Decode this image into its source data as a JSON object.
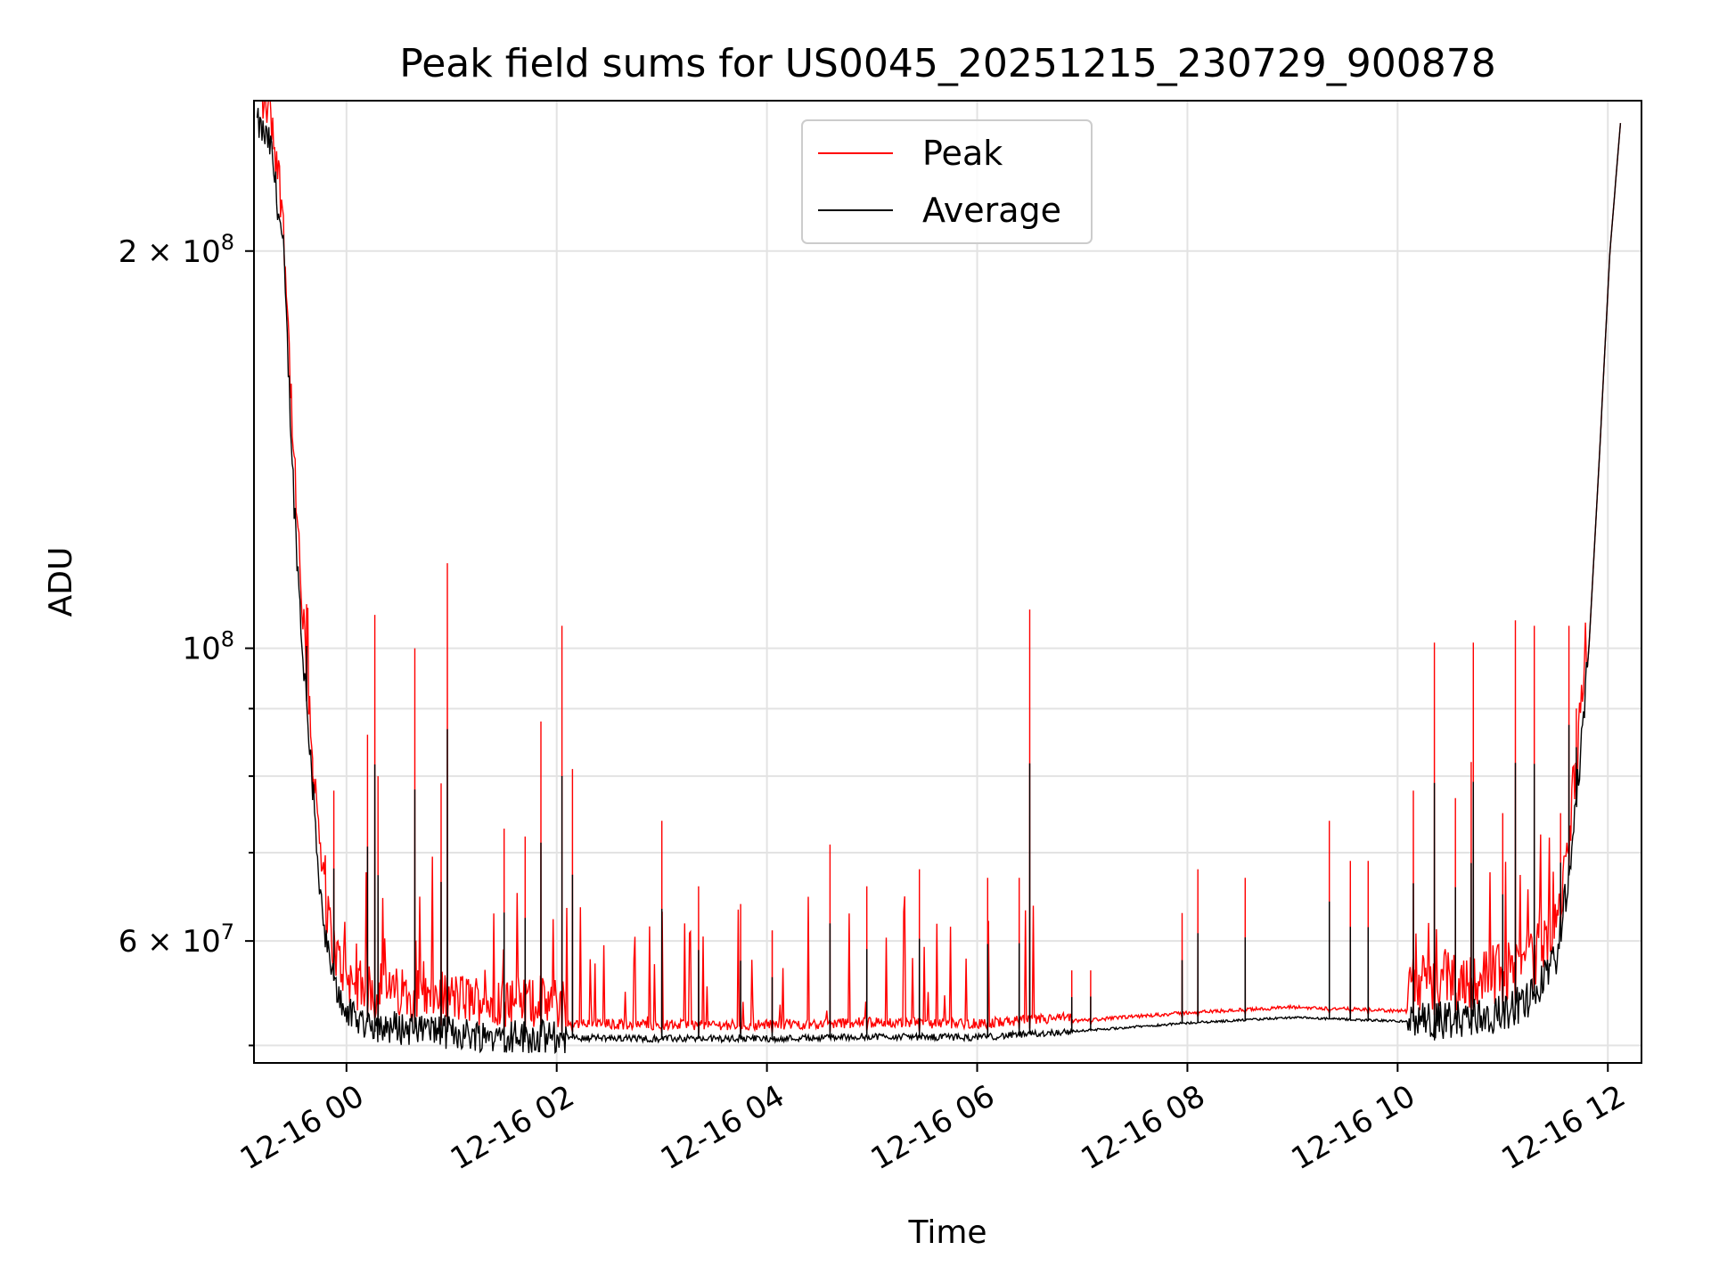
{
  "chart_data": {
    "type": "line",
    "title": "Peak field sums for US0045_20251215_230729_900878",
    "xlabel": "Time",
    "ylabel": "ADU",
    "yscale": "log",
    "xlim": [
      -0.88,
      12.32
    ],
    "ylim": [
      48500000,
      260000000
    ],
    "grid": true,
    "legend_position": "top-center",
    "x_ticks": [
      {
        "value": 0,
        "label": "12-16 00"
      },
      {
        "value": 2,
        "label": "12-16 02"
      },
      {
        "value": 4,
        "label": "12-16 04"
      },
      {
        "value": 6,
        "label": "12-16 06"
      },
      {
        "value": 8,
        "label": "12-16 08"
      },
      {
        "value": 10,
        "label": "12-16 10"
      },
      {
        "value": 12,
        "label": "12-16 12"
      }
    ],
    "y_major_ticks": [
      {
        "value": 200000000,
        "label": "2 × 10⁸",
        "mantissa": "2 × 10",
        "exp": "8"
      },
      {
        "value": 100000000,
        "label": "10⁸",
        "mantissa": "10",
        "exp": "8"
      },
      {
        "value": 60000000,
        "label": "6 × 10⁷",
        "mantissa": "6 × 10",
        "exp": "7"
      }
    ],
    "y_minor_ticks": [
      50000000,
      70000000,
      80000000,
      90000000
    ],
    "series": [
      {
        "name": "Peak",
        "color": "#ff0000"
      },
      {
        "name": "Average",
        "color": "#000000"
      }
    ],
    "baseline_avg": [
      [
        -0.85,
        250000000
      ],
      [
        -0.72,
        240000000
      ],
      [
        -0.6,
        200000000
      ],
      [
        -0.5,
        130000000
      ],
      [
        -0.42,
        100000000
      ],
      [
        -0.35,
        85000000
      ],
      [
        -0.28,
        70000000
      ],
      [
        -0.2,
        60000000
      ],
      [
        -0.1,
        55000000
      ],
      [
        0.05,
        52500000
      ],
      [
        0.3,
        51800000
      ],
      [
        0.7,
        51400000
      ],
      [
        1.2,
        51000000
      ],
      [
        2.0,
        50700000
      ],
      [
        3.0,
        50600000
      ],
      [
        4.0,
        50600000
      ],
      [
        5.0,
        50800000
      ],
      [
        6.0,
        50700000
      ],
      [
        7.0,
        51300000
      ],
      [
        8.0,
        52000000
      ],
      [
        9.0,
        52500000
      ],
      [
        9.6,
        52300000
      ],
      [
        10.2,
        52100000
      ],
      [
        10.6,
        52400000
      ],
      [
        11.0,
        53000000
      ],
      [
        11.3,
        54500000
      ],
      [
        11.5,
        58000000
      ],
      [
        11.62,
        66000000
      ],
      [
        11.72,
        80000000
      ],
      [
        11.82,
        100000000
      ],
      [
        11.92,
        140000000
      ],
      [
        12.02,
        200000000
      ],
      [
        12.12,
        250000000
      ]
    ],
    "peak_spikes": [
      [
        -0.38,
        108000000
      ],
      [
        -0.32,
        80000000
      ],
      [
        -0.12,
        78000000
      ],
      [
        0.2,
        86000000
      ],
      [
        0.27,
        106000000
      ],
      [
        0.3,
        80000000
      ],
      [
        0.65,
        100000000
      ],
      [
        0.9,
        79000000
      ],
      [
        0.96,
        116000000
      ],
      [
        1.5,
        73000000
      ],
      [
        1.7,
        72000000
      ],
      [
        1.85,
        88000000
      ],
      [
        2.05,
        104000000
      ],
      [
        2.15,
        81000000
      ],
      [
        3.0,
        74000000
      ],
      [
        3.35,
        66000000
      ],
      [
        3.75,
        64000000
      ],
      [
        4.05,
        61000000
      ],
      [
        4.6,
        71000000
      ],
      [
        4.95,
        66000000
      ],
      [
        5.45,
        68000000
      ],
      [
        6.1,
        67000000
      ],
      [
        6.4,
        67000000
      ],
      [
        6.5,
        107000000
      ],
      [
        6.9,
        57000000
      ],
      [
        7.08,
        57000000
      ],
      [
        7.95,
        63000000
      ],
      [
        8.1,
        68000000
      ],
      [
        8.55,
        67000000
      ],
      [
        9.35,
        74000000
      ],
      [
        9.55,
        69000000
      ],
      [
        9.72,
        69000000
      ],
      [
        10.15,
        78000000
      ],
      [
        10.35,
        101000000
      ],
      [
        10.55,
        77000000
      ],
      [
        10.7,
        82000000
      ],
      [
        10.72,
        101000000
      ],
      [
        11.0,
        75000000
      ],
      [
        11.12,
        105000000
      ],
      [
        11.3,
        104000000
      ],
      [
        11.55,
        75000000
      ],
      [
        11.63,
        104000000
      ],
      [
        11.7,
        90000000
      ]
    ]
  }
}
